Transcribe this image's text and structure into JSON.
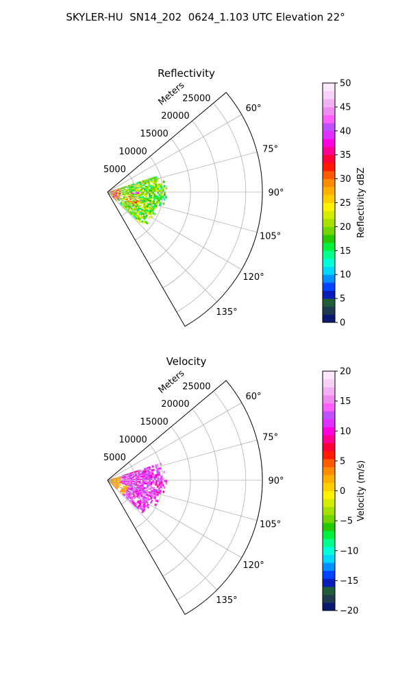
{
  "figure": {
    "title": "SKYLER-HU  SN14_202  0624_1.103 UTC Elevation 22°"
  },
  "chart_data": [
    {
      "type": "heatmap",
      "projection": "polar-sector",
      "title": "Reflectivity",
      "radial_axis_label": "Meters",
      "radial_ticks": [
        5000,
        10000,
        15000,
        20000,
        25000
      ],
      "radial_tick_labels": [
        "5000",
        "10000",
        "15000",
        "20000",
        "25000"
      ],
      "rlim": [
        0,
        28000
      ],
      "azimuth_range_deg": [
        50,
        150
      ],
      "azimuth_ticks_deg": [
        60,
        75,
        90,
        105,
        120,
        135
      ],
      "azimuth_tick_labels": [
        "60°",
        "75°",
        "90°",
        "105°",
        "120°",
        "135°"
      ],
      "grid": true,
      "colorbar": {
        "label": "Reflectivity dBZ",
        "range": [
          0,
          50
        ],
        "ticks": [
          0,
          5,
          10,
          15,
          20,
          25,
          30,
          35,
          40,
          45,
          50
        ],
        "tick_labels": [
          "0",
          "5",
          "10",
          "15",
          "20",
          "25",
          "30",
          "35",
          "40",
          "45",
          "50"
        ],
        "colors": [
          "#0b1a6e",
          "#1e3c4e",
          "#1e5c3a",
          "#0a1db8",
          "#0044ff",
          "#0090ff",
          "#00d8ff",
          "#00ffd8",
          "#00ff8c",
          "#00f040",
          "#26c800",
          "#72d400",
          "#a8e000",
          "#d4ec00",
          "#fff200",
          "#ffd000",
          "#ffb000",
          "#ff8c00",
          "#ff5a00",
          "#ff1a00",
          "#ff0038",
          "#ff0090",
          "#ff00e0",
          "#e030ff",
          "#c050ff",
          "#ff60ff",
          "#f08cf0",
          "#f4b0f4",
          "#f8d0f8",
          "#fce8fc"
        ]
      },
      "echo_summary": "Echoes within ~10500 m between 72° and 132° azimuth; strongest (35-50 dBZ) core near 92°, 5000 m"
    },
    {
      "type": "heatmap",
      "projection": "polar-sector",
      "title": "Velocity",
      "radial_axis_label": "Meters",
      "radial_ticks": [
        5000,
        10000,
        15000,
        20000,
        25000
      ],
      "radial_tick_labels": [
        "5000",
        "10000",
        "15000",
        "20000",
        "25000"
      ],
      "rlim": [
        0,
        28000
      ],
      "azimuth_range_deg": [
        50,
        150
      ],
      "azimuth_ticks_deg": [
        60,
        75,
        90,
        105,
        120,
        135
      ],
      "azimuth_tick_labels": [
        "60°",
        "75°",
        "90°",
        "105°",
        "120°",
        "135°"
      ],
      "grid": true,
      "colorbar": {
        "label": "Velocity (m/s)",
        "range": [
          -20,
          20
        ],
        "ticks": [
          -20,
          -15,
          -10,
          -5,
          0,
          5,
          10,
          15,
          20
        ],
        "tick_labels": [
          "−20",
          "−15",
          "−10",
          "−5",
          "0",
          "5",
          "10",
          "15",
          "20"
        ],
        "colors": [
          "#0b1a6e",
          "#1e3c4e",
          "#1e5c3a",
          "#0a1db8",
          "#0044ff",
          "#0090ff",
          "#00d8ff",
          "#00ffd8",
          "#00ff8c",
          "#00f040",
          "#26c800",
          "#72d400",
          "#a8e000",
          "#d4ec00",
          "#fff200",
          "#ffd000",
          "#ffb000",
          "#ff8c00",
          "#ff5a00",
          "#ff1a00",
          "#ff0038",
          "#ff0090",
          "#ff00e0",
          "#e030ff",
          "#c050ff",
          "#ff60ff",
          "#f08cf0",
          "#f4b0f4",
          "#f8d0f8",
          "#fce8fc"
        ]
      },
      "echo_summary": "Mostly +10 to +15 m/s (red/magenta) returns; near-radar returns 0 to +5 m/s (yellow/orange)"
    }
  ]
}
